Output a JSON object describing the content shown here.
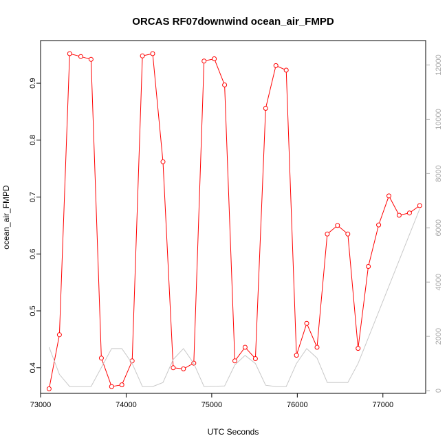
{
  "chart_data": {
    "type": "line",
    "title": "ORCAS RF07downwind ocean_air_FMPD",
    "xlabel": "UTC Seconds",
    "ylabel": "ocean_air_FMPD",
    "xlim": [
      73000,
      77500
    ],
    "ylim": [
      0.355,
      0.975
    ],
    "y2lim": [
      -100,
      12900
    ],
    "x_ticks": [
      73000,
      74000,
      75000,
      76000,
      77000
    ],
    "y_ticks": [
      0.4,
      0.5,
      0.6,
      0.7,
      0.8,
      0.9
    ],
    "y2_ticks": [
      0,
      2000,
      4000,
      6000,
      8000,
      10000,
      12000
    ],
    "grid": false,
    "colors": {
      "primary": "#ff0000",
      "secondary": "#c8c8c8",
      "axis": "#000000",
      "right_axis": "#aaaaaa"
    },
    "series": [
      {
        "axis": "left",
        "markers": "circle",
        "color": "#ff0000",
        "x": [
          73100,
          73220,
          73340,
          73470,
          73590,
          73710,
          73830,
          73950,
          74070,
          74190,
          74310,
          74430,
          74550,
          74670,
          74790,
          74910,
          75030,
          75150,
          75270,
          75390,
          75510,
          75630,
          75750,
          75870,
          75990,
          76110,
          76230,
          76350,
          76470,
          76590,
          76710,
          76830,
          76950,
          77070,
          77190,
          77310,
          77430
        ],
        "y": [
          0.363,
          0.458,
          0.952,
          0.947,
          0.942,
          0.417,
          0.367,
          0.37,
          0.412,
          0.948,
          0.952,
          0.762,
          0.4,
          0.398,
          0.408,
          0.939,
          0.943,
          0.897,
          0.412,
          0.436,
          0.416,
          0.856,
          0.931,
          0.923,
          0.422,
          0.478,
          0.436,
          0.635,
          0.65,
          0.635,
          0.434,
          0.578,
          0.651,
          0.702,
          0.668,
          0.672,
          0.685
        ]
      },
      {
        "axis": "right",
        "markers": "none",
        "color": "#c8c8c8",
        "x": [
          73100,
          73220,
          73340,
          73590,
          73830,
          73950,
          74070,
          74190,
          74310,
          74430,
          74550,
          74670,
          74790,
          74910,
          75150,
          75270,
          75390,
          75510,
          75630,
          75750,
          75870,
          75990,
          76110,
          76230,
          76350,
          76590,
          76710,
          77430
        ],
        "y": [
          1600,
          600,
          150,
          150,
          1550,
          1550,
          1000,
          150,
          150,
          300,
          1150,
          1550,
          1000,
          150,
          170,
          950,
          1300,
          1000,
          200,
          150,
          150,
          1000,
          1550,
          1200,
          300,
          300,
          1000,
          6700
        ]
      }
    ]
  }
}
